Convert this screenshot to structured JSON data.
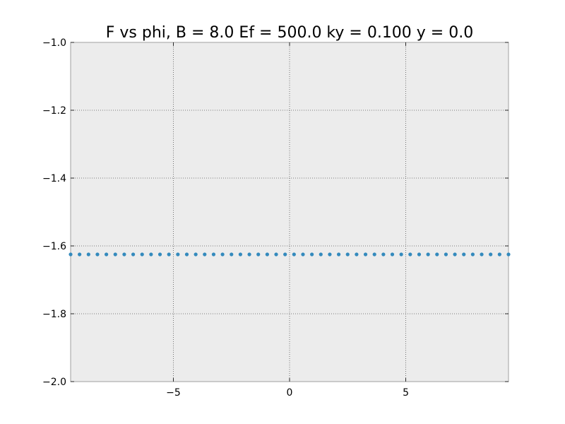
{
  "chart_data": {
    "type": "scatter",
    "title": "F vs phi, B = 8.0 Ef = 500.0 ky = 0.100 y = 0.0",
    "xlabel": "",
    "ylabel": "",
    "xlim": [
      -9.42,
      9.42
    ],
    "ylim": [
      -2.0,
      -1.0
    ],
    "grid": true,
    "legend": "none",
    "x_ticks": [
      {
        "value": -5,
        "label": "−5"
      },
      {
        "value": 0,
        "label": "0"
      },
      {
        "value": 5,
        "label": "5"
      }
    ],
    "y_ticks": [
      {
        "value": -1.0,
        "label": "−1.0"
      },
      {
        "value": -1.2,
        "label": "−1.2"
      },
      {
        "value": -1.4,
        "label": "−1.4"
      },
      {
        "value": -1.6,
        "label": "−1.6"
      },
      {
        "value": -1.8,
        "label": "−1.8"
      },
      {
        "value": -2.0,
        "label": "−2.0"
      }
    ],
    "series": [
      {
        "color": "#348abd",
        "marker": "dot",
        "x_range": [
          -9.42,
          9.42
        ],
        "point_count": 50,
        "y_constant": -1.625
      }
    ]
  }
}
